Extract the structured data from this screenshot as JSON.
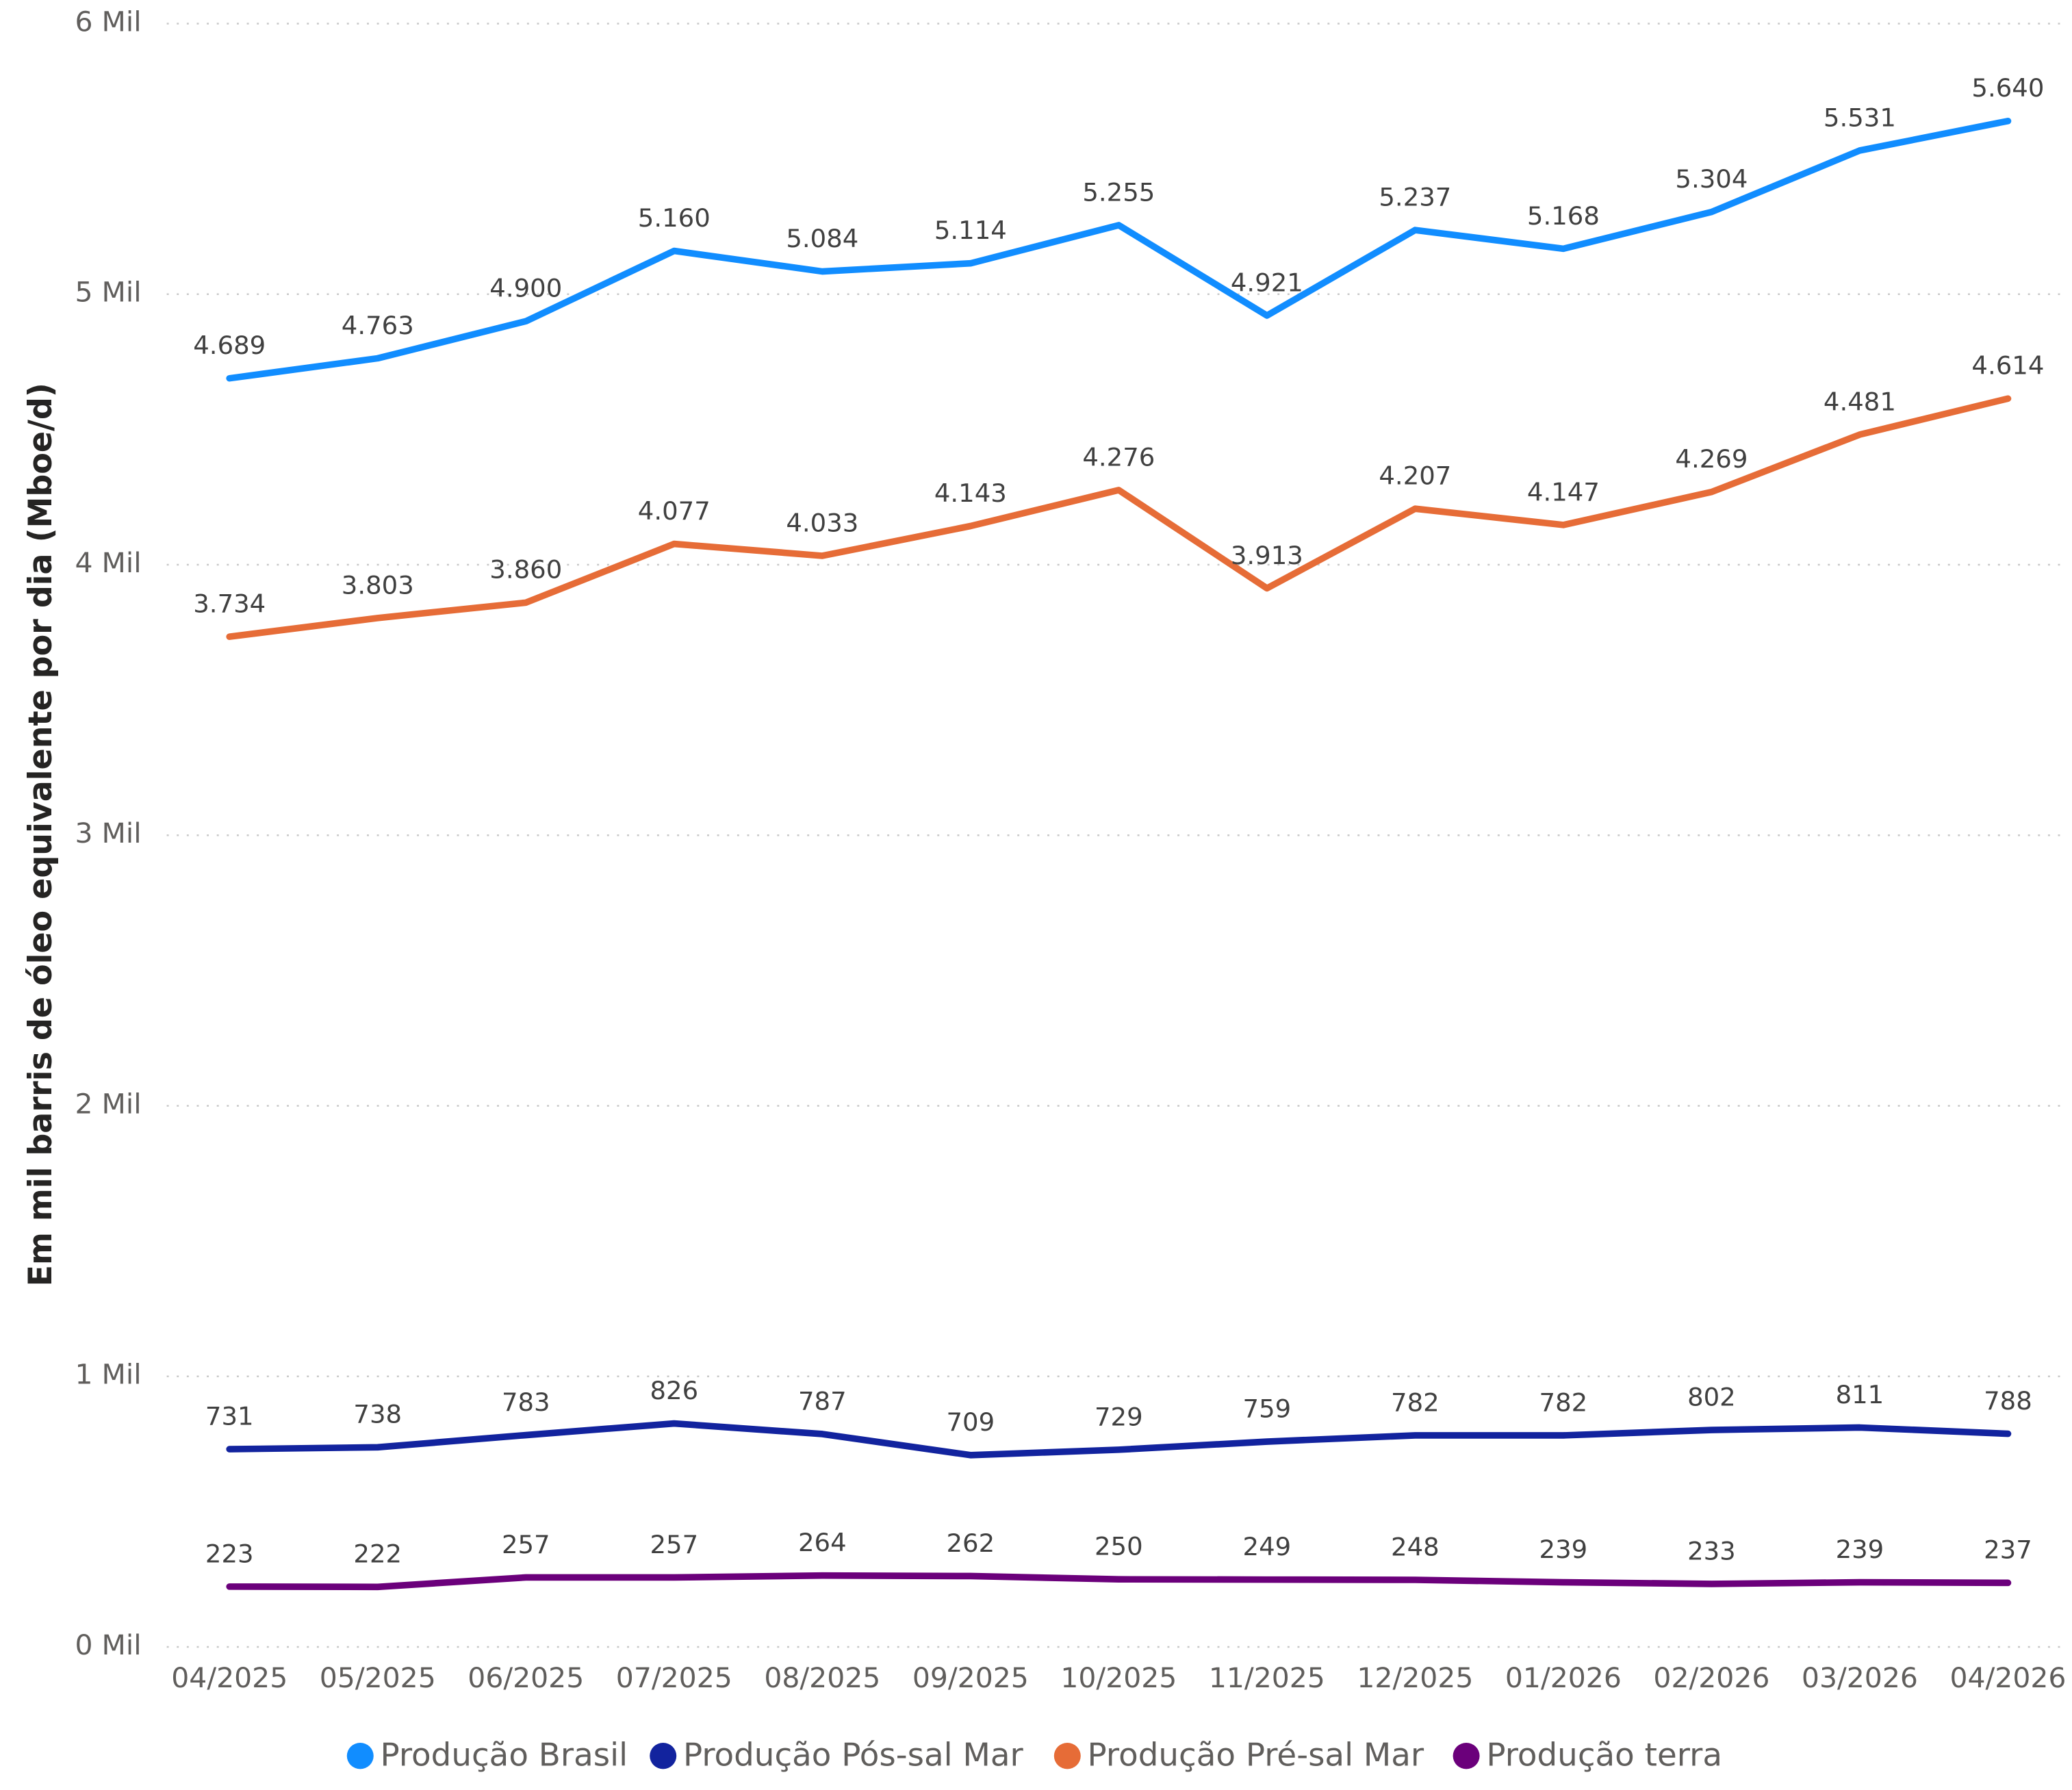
{
  "chart_data": {
    "type": "line",
    "y_label": "Em mil barris de óleo equivalente por dia (Mboe/d)",
    "categories": [
      "04/2025",
      "05/2025",
      "06/2025",
      "07/2025",
      "08/2025",
      "09/2025",
      "10/2025",
      "11/2025",
      "12/2025",
      "01/2026",
      "02/2026",
      "03/2026",
      "04/2026"
    ],
    "series": [
      {
        "name": "Produção Brasil",
        "color": "#118DFF",
        "values": [
          4689,
          4763,
          4900,
          5160,
          5084,
          5114,
          5255,
          4921,
          5237,
          5168,
          5304,
          5531,
          5640
        ],
        "value_labels": [
          "4.689",
          "4.763",
          "4.900",
          "5.160",
          "5.084",
          "5.114",
          "5.255",
          "4.921",
          "5.237",
          "5.168",
          "5.304",
          "5.531",
          "5.640"
        ]
      },
      {
        "name": "Produção Pós-sal Mar",
        "color": "#12239E",
        "values": [
          731,
          738,
          783,
          826,
          787,
          709,
          729,
          759,
          782,
          782,
          802,
          811,
          788
        ]
      },
      {
        "name": "Produção Pré-sal Mar",
        "color": "#E66C37",
        "values": [
          3734,
          3803,
          3860,
          4077,
          4033,
          4143,
          4276,
          3913,
          4207,
          4147,
          4269,
          4481,
          4614
        ],
        "value_labels": [
          "3.734",
          "3.803",
          "3.860",
          "4.077",
          "4.033",
          "4.143",
          "4.276",
          "3.913",
          "4.207",
          "4.147",
          "4.269",
          "4.481",
          "4.614"
        ]
      },
      {
        "name": "Produção terra",
        "color": "#6B007B",
        "values": [
          223,
          222,
          257,
          257,
          264,
          262,
          250,
          249,
          248,
          239,
          233,
          239,
          237
        ]
      }
    ],
    "ylim": [
      0,
      6000
    ],
    "yticks": [
      {
        "value": 0,
        "label": "0 Mil"
      },
      {
        "value": 1000,
        "label": "1 Mil"
      },
      {
        "value": 2000,
        "label": "2 Mil"
      },
      {
        "value": 3000,
        "label": "3 Mil"
      },
      {
        "value": 4000,
        "label": "4 Mil"
      },
      {
        "value": 5000,
        "label": "5 Mil"
      },
      {
        "value": 6000,
        "label": "6 Mil"
      }
    ],
    "grid": true,
    "legend": "bottom"
  }
}
